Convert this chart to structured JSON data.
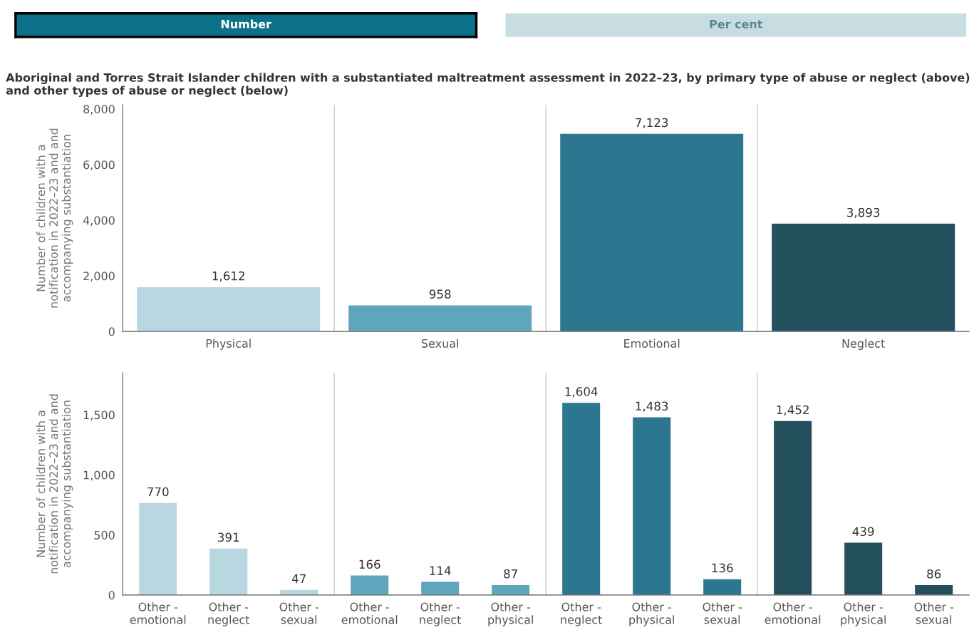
{
  "chart_data": [
    {
      "type": "bar",
      "title": "Aboriginal and Torres Strait Islander children with a substantiated maltreatment assessment in 2022–23, by primary type of abuse or neglect (above) and other types of abuse or neglect (below)",
      "annotations": [
        "Number",
        "Per cent"
      ],
      "ylabel": "Number of children with a\nnotification in 2022–23 and and\naccompanying substantiation",
      "categories": [
        "Physical",
        "Sexual",
        "Emotional",
        "Neglect"
      ],
      "values": [
        1612,
        958,
        7123,
        3893
      ],
      "colors": [
        "#b8d7e0",
        "#5fa5bb",
        "#2c778f",
        "#244f5c"
      ],
      "value_labels": [
        "1,612",
        "958",
        "7,123",
        "3,893"
      ],
      "ylim": [
        0,
        8150
      ],
      "yticks": [
        0,
        {
          "value": 2000,
          "label": "2,000"
        },
        {
          "value": 4000,
          "label": "4,000"
        },
        {
          "value": 6000,
          "label": "6,000"
        },
        {
          "value": 8000,
          "label": "8,000"
        }
      ],
      "grid": false,
      "legend": false
    },
    {
      "type": "bar",
      "ylabel": "Number of children with a\nnotification in 2022–23 and and\naccompanying substantiation",
      "categories": [
        "Other - emotional",
        "Other - neglect",
        "Other - sexual",
        "Other - emotional",
        "Other - neglect",
        "Other - physical",
        "Other - neglect",
        "Other - physical",
        "Other - sexual",
        "Other - emotional",
        "Other - physical",
        "Other - sexual"
      ],
      "values": [
        770,
        391,
        47,
        166,
        114,
        87,
        1604,
        1483,
        136,
        1452,
        439,
        86
      ],
      "colors": [
        "#b8d7e0",
        "#b8d7e0",
        "#b8d7e0",
        "#5fa5bb",
        "#5fa5bb",
        "#5fa5bb",
        "#2c778f",
        "#2c778f",
        "#2c778f",
        "#244f5c",
        "#244f5c",
        "#244f5c"
      ],
      "value_labels": [
        "770",
        "391",
        "47",
        "166",
        "114",
        "87",
        "1,604",
        "1,483",
        "136",
        "1,452",
        "439",
        "86"
      ],
      "ylim": [
        0,
        1850
      ],
      "yticks": [
        0,
        500,
        {
          "value": 1000,
          "label": "1,000"
        },
        {
          "value": 1500,
          "label": "1,500"
        }
      ],
      "grid": false,
      "legend": false
    }
  ]
}
